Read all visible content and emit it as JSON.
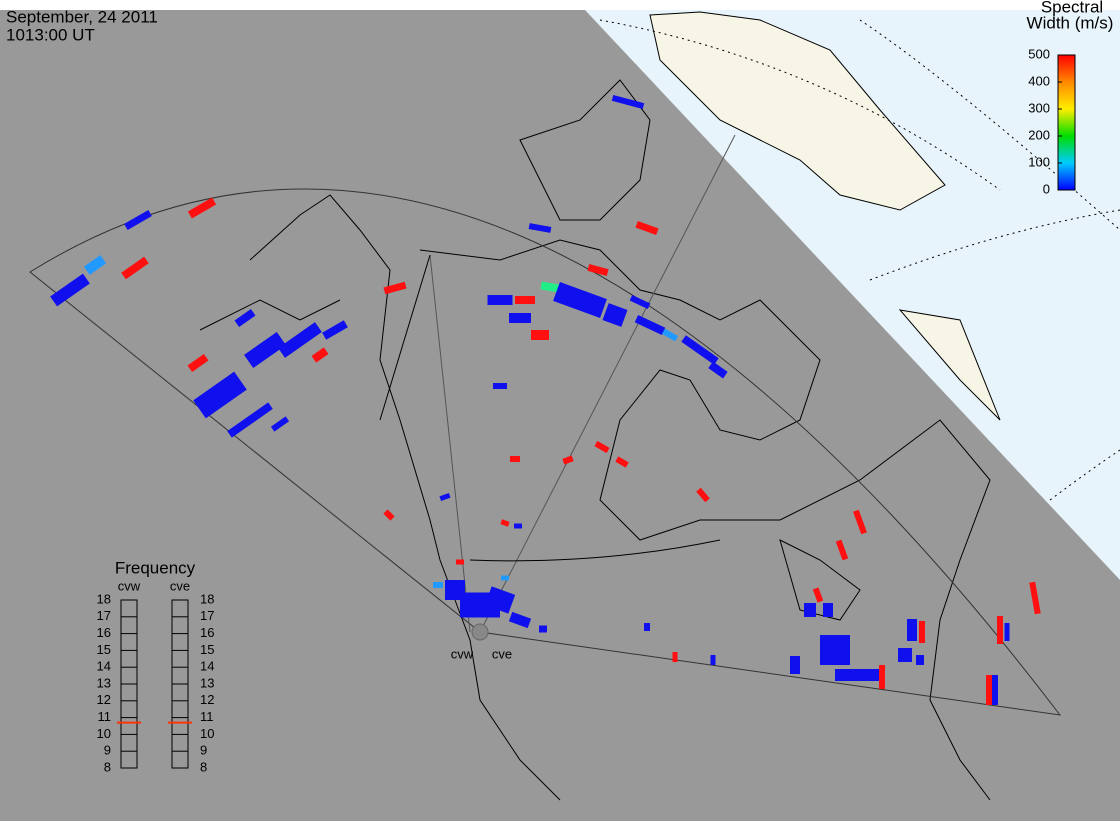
{
  "header": {
    "date": "September, 24 2011",
    "time": "1013:00 UT"
  },
  "colorbar": {
    "title_line1": "Spectral",
    "title_line2": "Width (m/s)",
    "lim": [
      0,
      500
    ],
    "ticks": [
      0,
      100,
      200,
      300,
      400,
      500
    ]
  },
  "frequency": {
    "title": "Frequency",
    "radars": [
      "cvw",
      "cve"
    ],
    "values": [
      10.7,
      10.7
    ],
    "color": "#ff3300",
    "lim": [
      8,
      18
    ],
    "ticks": [
      8,
      9,
      10,
      11,
      12,
      13,
      14,
      15,
      16,
      17,
      18
    ]
  },
  "radar_labels": [
    "cvw",
    "cve"
  ]
}
